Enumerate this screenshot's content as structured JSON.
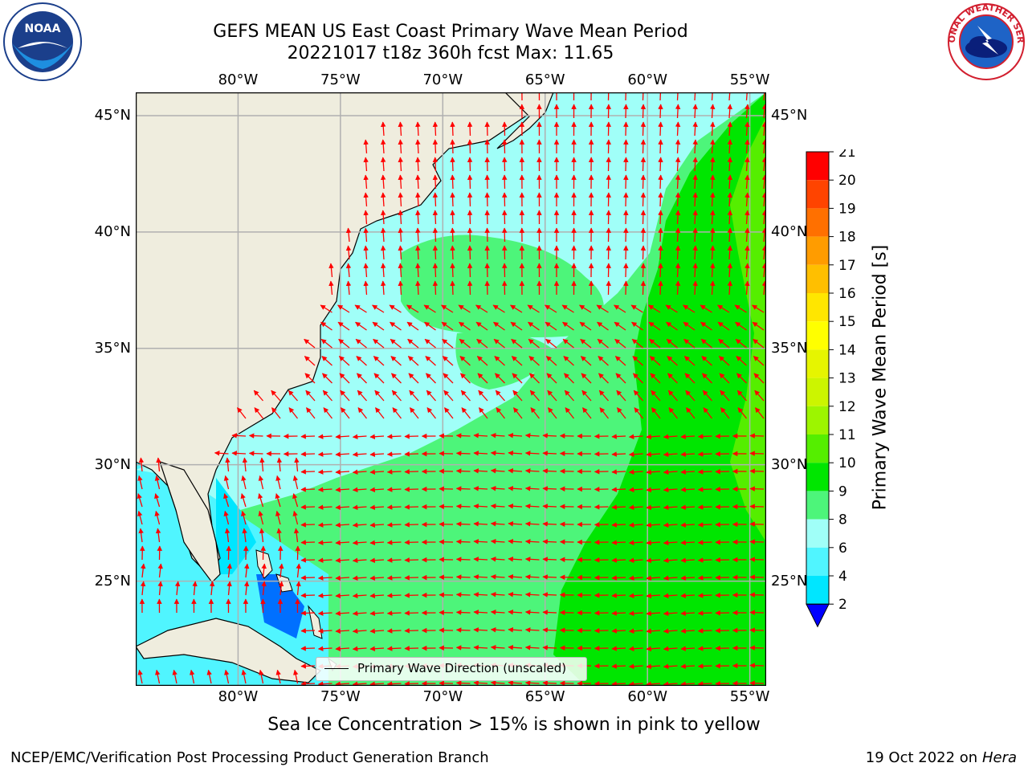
{
  "title": {
    "line1": "GEFS MEAN US East Coast Primary Wave Mean Period",
    "line2": "20221017 t18z 360h fcst   Max: 11.65"
  },
  "map": {
    "lon_labels": [
      "80°W",
      "75°W",
      "70°W",
      "65°W",
      "60°W",
      "55°W"
    ],
    "lon_values": [
      -80,
      -75,
      -70,
      -65,
      -60,
      -55
    ],
    "lat_labels": [
      "45°N",
      "40°N",
      "35°N",
      "30°N",
      "25°N"
    ],
    "lat_values": [
      45,
      40,
      35,
      30,
      25
    ],
    "lon_range": [
      -85,
      -54.2
    ],
    "lat_range": [
      20.5,
      46
    ],
    "colors": {
      "land": "#efedde",
      "coast": "#000000",
      "grid": "#b0b0b0",
      "arrow": "#ff0000"
    },
    "legend": "Primary Wave Direction (unscaled)"
  },
  "colorbar": {
    "label": "Primary Wave Mean Period [s]",
    "ticks": [
      "2",
      "4",
      "6",
      "8",
      "9",
      "10",
      "11",
      "12",
      "13",
      "14",
      "15",
      "16",
      "17",
      "18",
      "19",
      "20",
      "21"
    ],
    "colors": [
      "#0070ff",
      "#00e6ff",
      "#50f5ff",
      "#a0fff8",
      "#4df57a",
      "#00e600",
      "#55ee00",
      "#9df500",
      "#ccf500",
      "#e6f500",
      "#ffff00",
      "#ffe600",
      "#ffbf00",
      "#ff9c00",
      "#ff7000",
      "#ff4400",
      "#ff0000"
    ],
    "under_color": "#0000ff"
  },
  "subtitle": "Sea Ice Concentration > 15% is shown in pink to yellow",
  "footer": {
    "left": "NCEP/EMC/Verification Post Processing Product Generation Branch",
    "right_date": "19 Oct 2022 on ",
    "right_host": "Hera"
  },
  "logos": {
    "noaa": "NOAA",
    "nws": "NATIONAL WEATHER SERVICE"
  }
}
